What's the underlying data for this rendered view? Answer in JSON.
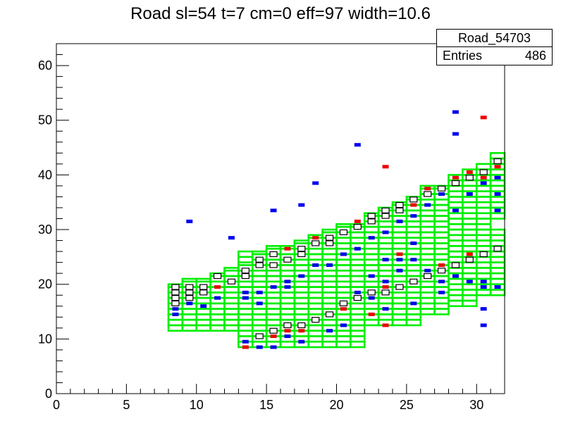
{
  "title": "Road sl=54 t=7 cm=0 eff=97 width=10.6",
  "stats": {
    "name": "Road_54703",
    "entries_label": "Entries",
    "entries_value": "486"
  },
  "colors": {
    "band": "#00ee00",
    "red": "#ee0000",
    "blue": "#0000ee",
    "frame": "#000000",
    "background": "#ffffff"
  },
  "chart_data": {
    "type": "heatmap",
    "title": "Road sl=54 t=7 cm=0 eff=97 width=10.6",
    "xlabel": "",
    "ylabel": "",
    "xlim": [
      0,
      32
    ],
    "ylim": [
      0,
      64
    ],
    "x_ticks": [
      0,
      5,
      10,
      15,
      20,
      25,
      30
    ],
    "y_ticks": [
      0,
      10,
      20,
      30,
      40,
      50,
      60
    ],
    "entries": 486,
    "road_band": {
      "color": "green",
      "columns": [
        {
          "x": 8,
          "lower": [
            11.5,
            20
          ]
        },
        {
          "x": 9,
          "lower": [
            11.5,
            21
          ]
        },
        {
          "x": 10,
          "lower": [
            11.5,
            21
          ]
        },
        {
          "x": 11,
          "lower": [
            11.5,
            22
          ]
        },
        {
          "x": 12,
          "lower": [
            11.5,
            23
          ]
        },
        {
          "x": 13,
          "lower": [
            8.5,
            24
          ],
          "upper": [
            24,
            26
          ]
        },
        {
          "x": 14,
          "lower": [
            8.5,
            26
          ]
        },
        {
          "x": 15,
          "lower": [
            8.5,
            27
          ]
        },
        {
          "x": 16,
          "lower": [
            8.5,
            27
          ]
        },
        {
          "x": 17,
          "lower": [
            8.5,
            28
          ]
        },
        {
          "x": 18,
          "lower": [
            8.5,
            29
          ]
        },
        {
          "x": 19,
          "lower": [
            8.5,
            30
          ]
        },
        {
          "x": 20,
          "lower": [
            8.5,
            31
          ]
        },
        {
          "x": 21,
          "lower": [
            8.5,
            31
          ]
        },
        {
          "x": 22,
          "lower": [
            12.5,
            33
          ]
        },
        {
          "x": 23,
          "lower": [
            12.5,
            34
          ]
        },
        {
          "x": 24,
          "lower": [
            12.5,
            35
          ]
        },
        {
          "x": 25,
          "lower": [
            12.5,
            36
          ]
        },
        {
          "x": 26,
          "lower": [
            14.5,
            38
          ]
        },
        {
          "x": 27,
          "lower": [
            14.5,
            38
          ]
        },
        {
          "x": 28,
          "lower": [
            16,
            30
          ],
          "upper": [
            30,
            40
          ]
        },
        {
          "x": 29,
          "lower": [
            16,
            30
          ],
          "upper": [
            30,
            41
          ]
        },
        {
          "x": 30,
          "lower": [
            18,
            30
          ],
          "upper": [
            30,
            42
          ]
        },
        {
          "x": 31,
          "lower": [
            18,
            30
          ],
          "upper": [
            32,
            44
          ]
        }
      ]
    },
    "series": [
      {
        "name": "",
        "color": "blue",
        "points": [
          [
            9.5,
            31.5
          ],
          [
            12.5,
            28.5
          ],
          [
            15.5,
            33.5
          ],
          [
            17.5,
            34.5
          ],
          [
            18.5,
            38.5
          ],
          [
            21.5,
            45.5
          ],
          [
            28.5,
            51.5
          ],
          [
            28.5,
            47.5
          ],
          [
            30.5,
            15.5
          ],
          [
            30.5,
            12.5
          ],
          [
            8.5,
            14.5
          ],
          [
            8.5,
            15.5
          ],
          [
            9.5,
            16.5
          ],
          [
            10.5,
            16
          ],
          [
            11.5,
            17.5
          ],
          [
            13.5,
            17.5
          ],
          [
            13.5,
            18.5
          ],
          [
            14.5,
            18.5
          ],
          [
            14.5,
            16.5
          ],
          [
            15.5,
            19.5
          ],
          [
            16.5,
            19.5
          ],
          [
            16.5,
            20.5
          ],
          [
            17.5,
            21.5
          ],
          [
            13.5,
            9.5
          ],
          [
            14.5,
            8.5
          ],
          [
            15.5,
            8.5
          ],
          [
            16.5,
            10.5
          ],
          [
            17.5,
            9.5
          ],
          [
            19.5,
            11.5
          ],
          [
            20.5,
            12.5
          ],
          [
            21.5,
            18.5
          ],
          [
            22.5,
            21.5
          ],
          [
            23.5,
            20.5
          ],
          [
            23.5,
            24.5
          ],
          [
            24.5,
            24.5
          ],
          [
            24.5,
            22.5
          ],
          [
            25.5,
            27.5
          ],
          [
            25.5,
            24.5
          ],
          [
            26.5,
            22.5
          ],
          [
            27.5,
            20.5
          ],
          [
            28.5,
            21.5
          ],
          [
            29.5,
            20.5
          ],
          [
            30.5,
            20.5
          ],
          [
            30.5,
            19.5
          ],
          [
            31.5,
            19.5
          ],
          [
            31.5,
            36.5
          ],
          [
            31.5,
            39.5
          ],
          [
            30.5,
            38.5
          ],
          [
            29.5,
            36.5
          ],
          [
            28.5,
            33.5
          ],
          [
            27.5,
            36.5
          ],
          [
            26.5,
            34.5
          ],
          [
            25.5,
            32.5
          ],
          [
            24.5,
            31.5
          ],
          [
            23.5,
            29.5
          ],
          [
            22.5,
            28.5
          ],
          [
            21.5,
            26.5
          ],
          [
            20.5,
            25.5
          ],
          [
            19.5,
            23.5
          ],
          [
            18.5,
            23.5
          ],
          [
            27.5,
            18.5
          ],
          [
            25.5,
            16.5
          ],
          [
            23.5,
            15.5
          ],
          [
            22.5,
            17.5
          ],
          [
            31.5,
            33.5
          ]
        ]
      },
      {
        "name": "",
        "color": "red",
        "points": [
          [
            30.5,
            50.5
          ],
          [
            23.5,
            41.5
          ],
          [
            11.5,
            19.5
          ],
          [
            13.5,
            8.5
          ],
          [
            15.5,
            10.5
          ],
          [
            16.5,
            11.5
          ],
          [
            17.5,
            11.5
          ],
          [
            16.5,
            26.5
          ],
          [
            18.5,
            28.5
          ],
          [
            20.5,
            15.5
          ],
          [
            21.5,
            31.5
          ],
          [
            22.5,
            14.5
          ],
          [
            23.5,
            12.5
          ],
          [
            23.5,
            19.5
          ],
          [
            24.5,
            25.5
          ],
          [
            25.5,
            34.5
          ],
          [
            26.5,
            37.5
          ],
          [
            27.5,
            23.5
          ],
          [
            28.5,
            39.5
          ],
          [
            29.5,
            40.5
          ],
          [
            30.5,
            39.5
          ],
          [
            31.5,
            41.5
          ],
          [
            31.5,
            26.5
          ],
          [
            29.5,
            25.5
          ]
        ]
      },
      {
        "name": "",
        "color": "black",
        "points": [
          [
            8.5,
            19.5
          ],
          [
            8.5,
            18.5
          ],
          [
            8.5,
            17.5
          ],
          [
            8.5,
            16.5
          ],
          [
            9.5,
            19.5
          ],
          [
            9.5,
            18.5
          ],
          [
            9.5,
            17.5
          ],
          [
            10.5,
            19.5
          ],
          [
            10.5,
            18.5
          ],
          [
            11.5,
            21.5
          ],
          [
            12.5,
            20.5
          ],
          [
            13.5,
            21.5
          ],
          [
            13.5,
            22.5
          ],
          [
            14.5,
            23.5
          ],
          [
            14.5,
            24.5
          ],
          [
            15.5,
            25.5
          ],
          [
            15.5,
            23.5
          ],
          [
            16.5,
            24.5
          ],
          [
            17.5,
            26.5
          ],
          [
            17.5,
            25.5
          ],
          [
            18.5,
            27.5
          ],
          [
            19.5,
            28.5
          ],
          [
            19.5,
            27.5
          ],
          [
            20.5,
            29.5
          ],
          [
            21.5,
            30.5
          ],
          [
            22.5,
            31.5
          ],
          [
            22.5,
            32.5
          ],
          [
            23.5,
            32.5
          ],
          [
            23.5,
            33.5
          ],
          [
            24.5,
            33.5
          ],
          [
            24.5,
            34.5
          ],
          [
            25.5,
            35.5
          ],
          [
            26.5,
            36.5
          ],
          [
            27.5,
            37.5
          ],
          [
            28.5,
            38.5
          ],
          [
            29.5,
            39.5
          ],
          [
            30.5,
            40.5
          ],
          [
            31.5,
            42.5
          ],
          [
            14.5,
            10.5
          ],
          [
            15.5,
            11.5
          ],
          [
            16.5,
            12.5
          ],
          [
            17.5,
            12.5
          ],
          [
            18.5,
            13.5
          ],
          [
            19.5,
            14.5
          ],
          [
            20.5,
            16.5
          ],
          [
            21.5,
            17.5
          ],
          [
            22.5,
            18.5
          ],
          [
            23.5,
            18.5
          ],
          [
            24.5,
            19.5
          ],
          [
            25.5,
            20.5
          ],
          [
            26.5,
            21.5
          ],
          [
            27.5,
            22.5
          ],
          [
            28.5,
            23.5
          ],
          [
            29.5,
            24.5
          ],
          [
            30.5,
            25.5
          ],
          [
            31.5,
            26.5
          ]
        ]
      }
    ]
  }
}
